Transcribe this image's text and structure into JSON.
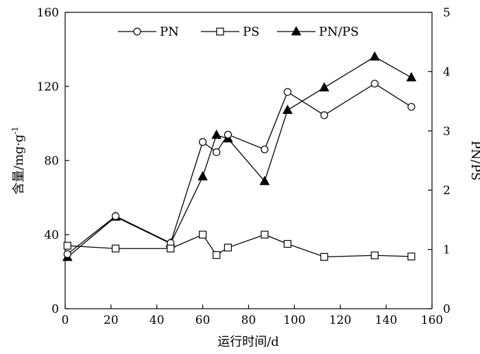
{
  "chart_data": {
    "type": "line",
    "x": [
      1,
      22,
      46,
      60,
      66,
      71,
      87,
      97,
      113,
      135,
      151
    ],
    "series": [
      {
        "name": "PN",
        "axis": "left",
        "marker": "circle-open",
        "values": [
          29.5,
          50,
          35.5,
          90,
          84.5,
          94,
          86,
          117,
          104.5,
          121.5,
          109
        ]
      },
      {
        "name": "PS",
        "axis": "left",
        "marker": "square-open",
        "values": [
          34,
          32.5,
          32.5,
          40,
          29,
          33,
          40,
          35,
          28,
          28.8,
          28.2
        ]
      },
      {
        "name": "PN/PS",
        "axis": "right",
        "marker": "triangle-filled",
        "values": [
          0.87,
          1.55,
          1.1,
          2.23,
          2.93,
          2.87,
          2.15,
          3.35,
          3.73,
          4.25,
          3.9
        ]
      }
    ],
    "xlabel": "运行时间/d",
    "ylabel": "含量/mg·g",
    "ylabel_superscript": "-1",
    "y2label": "PN/PS",
    "xlim": [
      0,
      160
    ],
    "ylim": [
      0,
      160
    ],
    "y2lim": [
      0,
      5
    ],
    "xticks": [
      "0",
      "20",
      "40",
      "60",
      "80",
      "100",
      "120",
      "140",
      "160"
    ],
    "yticks": [
      "0",
      "40",
      "80",
      "120",
      "160"
    ],
    "y2ticks": [
      "0",
      "1",
      "2",
      "3",
      "4",
      "5"
    ],
    "grid": false,
    "legend_position": "top-center"
  }
}
